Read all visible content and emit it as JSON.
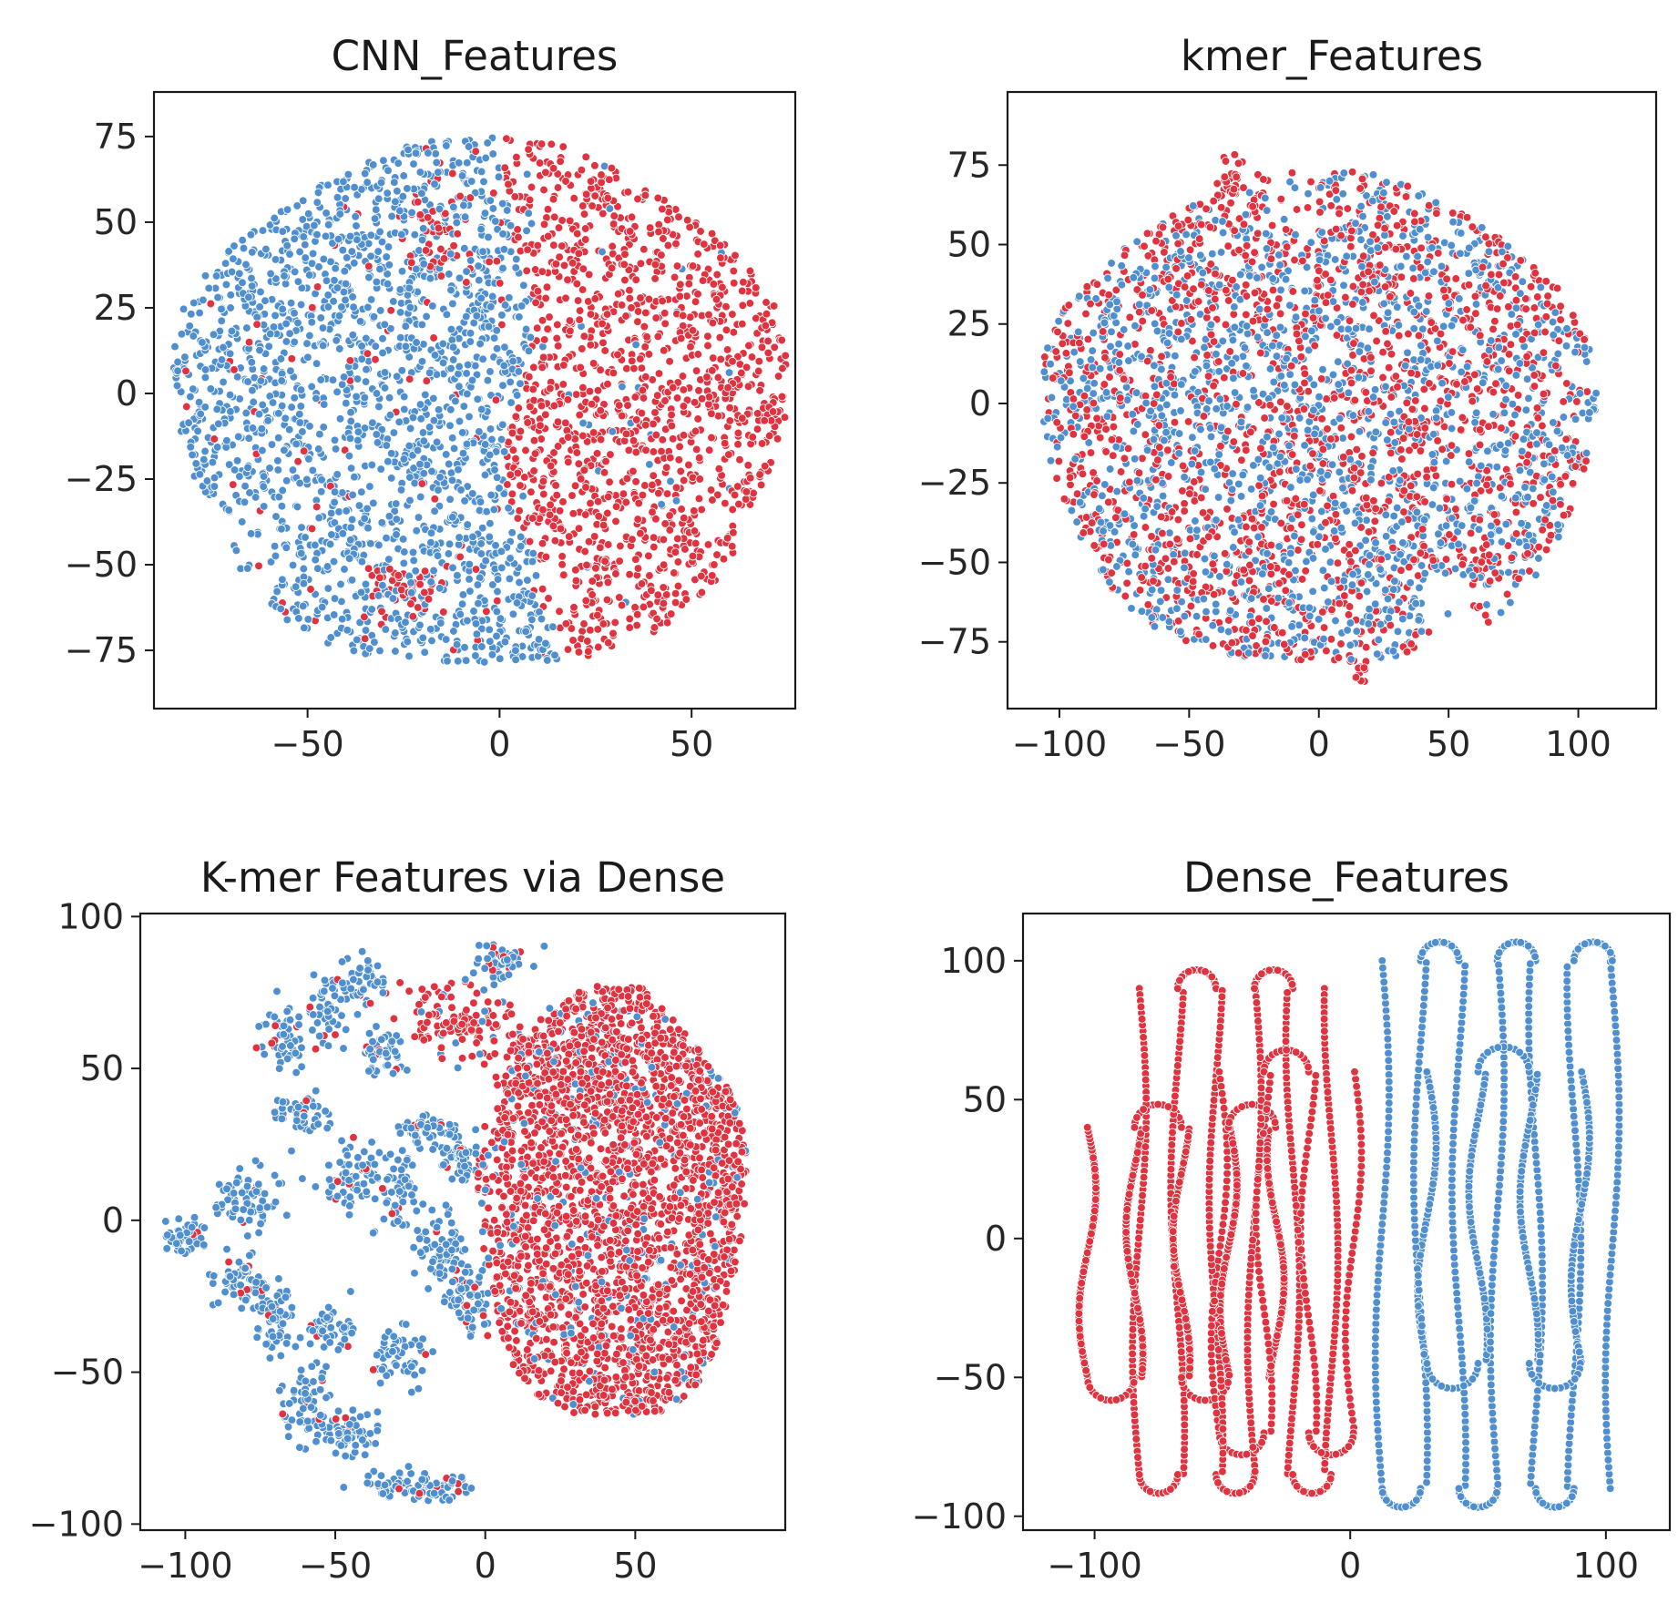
{
  "colors": {
    "class_a": "#4f8fcf",
    "class_b": "#e0323f",
    "marker_edge": "#ffffff"
  },
  "chart_data": [
    {
      "type": "scatter",
      "title": "CNN_Features",
      "xlabel": "",
      "ylabel": "",
      "xlim": [
        -90,
        77
      ],
      "ylim": [
        -92,
        88
      ],
      "xticks": [
        -50,
        0,
        50
      ],
      "yticks": [
        -75,
        -50,
        -25,
        0,
        25,
        50,
        75
      ],
      "xtick_labels": [
        "−50",
        "0",
        "50"
      ],
      "ytick_labels": [
        "−75",
        "−50",
        "−25",
        "0",
        "25",
        "50",
        "75"
      ],
      "grid": false,
      "legend": "none",
      "pattern": "two-halves",
      "point_count": 3200,
      "cluster_summary": [
        {
          "color": "class_a",
          "region": "left half",
          "x_range": [
            -85,
            20
          ],
          "y_range": [
            -82,
            80
          ]
        },
        {
          "color": "class_b",
          "region": "right half",
          "x_range": [
            -5,
            75
          ],
          "y_range": [
            -82,
            68
          ]
        }
      ]
    },
    {
      "type": "scatter",
      "title": "kmer_Features",
      "xlabel": "",
      "ylabel": "",
      "xlim": [
        -120,
        130
      ],
      "ylim": [
        -96,
        98
      ],
      "xticks": [
        -100,
        -50,
        0,
        50,
        100
      ],
      "yticks": [
        -75,
        -50,
        -25,
        0,
        25,
        50,
        75
      ],
      "xtick_labels": [
        "−100",
        "−50",
        "0",
        "50",
        "100"
      ],
      "ytick_labels": [
        "−75",
        "−50",
        "−25",
        "0",
        "25",
        "50",
        "75"
      ],
      "grid": false,
      "legend": "none",
      "pattern": "mixed",
      "point_count": 3400,
      "cluster_summary": [
        {
          "color": "class_a",
          "region": "mixed blob",
          "x_range": [
            -108,
            110
          ],
          "y_range": [
            -80,
            86
          ]
        },
        {
          "color": "class_b",
          "region": "mixed blob",
          "x_range": [
            -108,
            110
          ],
          "y_range": [
            -86,
            76
          ]
        }
      ]
    },
    {
      "type": "scatter",
      "title": "K-mer Features via Dense",
      "xlabel": "",
      "ylabel": "",
      "xlim": [
        -115,
        100
      ],
      "ylim": [
        -102,
        101
      ],
      "xticks": [
        -100,
        -50,
        0,
        50
      ],
      "yticks": [
        -100,
        -50,
        0,
        50,
        100
      ],
      "xtick_labels": [
        "−100",
        "−50",
        "0",
        "50"
      ],
      "ytick_labels": [
        "−100",
        "−50",
        "0",
        "50",
        "100"
      ],
      "grid": false,
      "legend": "none",
      "pattern": "fragmented-left",
      "point_count": 2600,
      "cluster_summary": [
        {
          "color": "class_a",
          "region": "left fragments",
          "x_range": [
            -105,
            15
          ],
          "y_range": [
            -92,
            90
          ]
        },
        {
          "color": "class_b",
          "region": "right mass",
          "x_range": [
            -20,
            90
          ],
          "y_range": [
            -75,
            80
          ]
        }
      ]
    },
    {
      "type": "scatter",
      "title": "Dense_Features",
      "xlabel": "",
      "ylabel": "",
      "xlim": [
        -128,
        125
      ],
      "ylim": [
        -105,
        117
      ],
      "xticks": [
        -100,
        0,
        100
      ],
      "yticks": [
        -100,
        -50,
        0,
        50,
        100
      ],
      "xtick_labels": [
        "−100",
        "0",
        "100"
      ],
      "ytick_labels": [
        "−100",
        "−50",
        "0",
        "50",
        "100"
      ],
      "grid": false,
      "legend": "none",
      "pattern": "worm-curves",
      "point_count": 1500,
      "cluster_summary": [
        {
          "color": "class_b",
          "region": "left serpentine curves",
          "x_range": [
            -118,
            20
          ],
          "y_range": [
            -90,
            95
          ]
        },
        {
          "color": "class_a",
          "region": "right serpentine curves",
          "x_range": [
            -5,
            115
          ],
          "y_range": [
            -95,
            108
          ]
        }
      ]
    }
  ]
}
